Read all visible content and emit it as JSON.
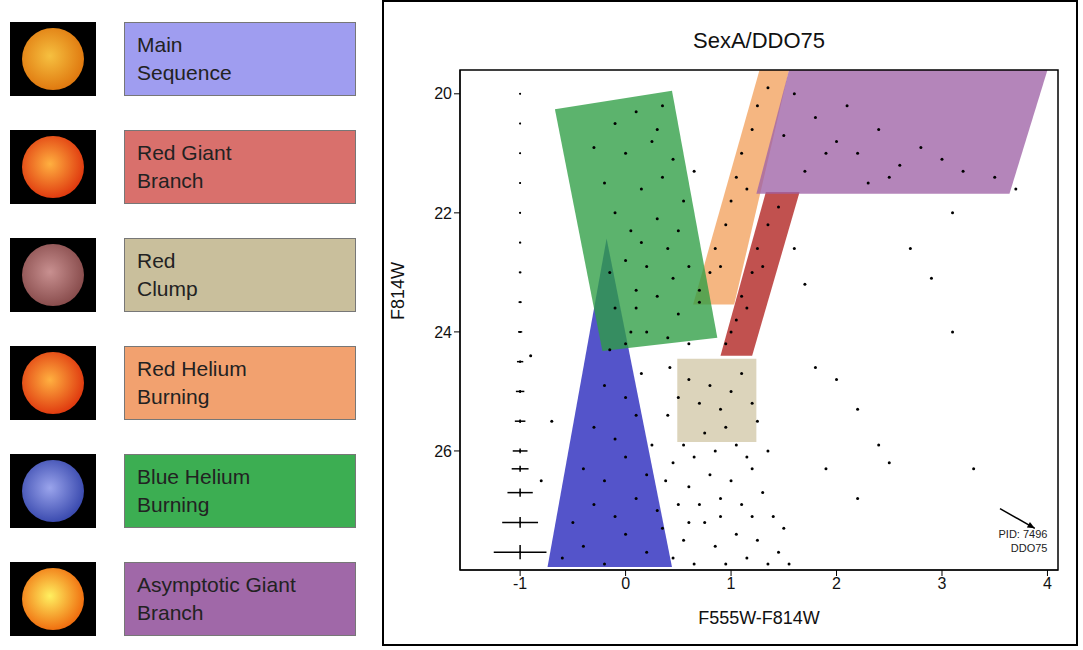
{
  "chart_data": {
    "type": "scatter",
    "title": "SexA/DDO75",
    "x_label": "F555W-F814W",
    "y_label": "F814W",
    "xlim": [
      -1.57,
      4.1
    ],
    "ylim": [
      28.0,
      19.6
    ],
    "xticks": [
      -1,
      0,
      1,
      2,
      3,
      4
    ],
    "yticks": [
      20,
      22,
      24,
      26
    ],
    "points": {
      "color": "#000000",
      "xy": [
        [
          0.45,
          27.8
        ],
        [
          0.55,
          27.5
        ],
        [
          0.65,
          27.9
        ],
        [
          0.75,
          27.2
        ],
        [
          0.85,
          27.6
        ],
        [
          0.95,
          27.9
        ],
        [
          1.05,
          27.4
        ],
        [
          1.15,
          27.8
        ],
        [
          1.25,
          27.5
        ],
        [
          1.35,
          27.9
        ],
        [
          1.45,
          27.7
        ],
        [
          0.5,
          26.9
        ],
        [
          0.6,
          26.6
        ],
        [
          0.7,
          26.9
        ],
        [
          0.8,
          26.4
        ],
        [
          0.9,
          26.8
        ],
        [
          1.0,
          26.5
        ],
        [
          1.1,
          26.9
        ],
        [
          1.2,
          26.3
        ],
        [
          1.3,
          26.7
        ],
        [
          1.4,
          27.1
        ],
        [
          0.45,
          26.2
        ],
        [
          0.55,
          25.9
        ],
        [
          0.65,
          26.1
        ],
        [
          0.75,
          25.7
        ],
        [
          0.85,
          26.0
        ],
        [
          0.95,
          25.6
        ],
        [
          1.05,
          25.9
        ],
        [
          1.15,
          26.1
        ],
        [
          1.25,
          25.5
        ],
        [
          1.35,
          26.0
        ],
        [
          0.4,
          25.4
        ],
        [
          0.5,
          25.1
        ],
        [
          0.6,
          24.8
        ],
        [
          0.7,
          25.2
        ],
        [
          0.8,
          24.9
        ],
        [
          0.9,
          25.3
        ],
        [
          1.0,
          25.0
        ],
        [
          1.1,
          24.7
        ],
        [
          1.2,
          25.2
        ],
        [
          0.42,
          24.6
        ],
        [
          0.35,
          27.3
        ],
        [
          0.38,
          26.5
        ],
        [
          1.5,
          27.3
        ],
        [
          1.55,
          27.9
        ],
        [
          0.9,
          27.1
        ],
        [
          0.6,
          27.2
        ],
        [
          1.2,
          27.1
        ],
        [
          -0.6,
          27.8
        ],
        [
          -0.4,
          27.6
        ],
        [
          -0.2,
          27.9
        ],
        [
          0.0,
          27.4
        ],
        [
          0.2,
          27.7
        ],
        [
          -0.5,
          27.2
        ],
        [
          -0.3,
          26.9
        ],
        [
          -0.1,
          27.1
        ],
        [
          0.1,
          26.8
        ],
        [
          0.3,
          27.0
        ],
        [
          -0.4,
          26.3
        ],
        [
          -0.2,
          26.5
        ],
        [
          0.0,
          26.1
        ],
        [
          0.2,
          26.4
        ],
        [
          -0.3,
          25.6
        ],
        [
          -0.1,
          25.8
        ],
        [
          0.1,
          25.4
        ],
        [
          0.25,
          25.9
        ],
        [
          -0.2,
          24.9
        ],
        [
          0.0,
          25.1
        ],
        [
          0.15,
          24.7
        ],
        [
          -0.15,
          24.3
        ],
        [
          0.05,
          24.0
        ],
        [
          -0.1,
          23.6
        ],
        [
          0.1,
          23.3
        ],
        [
          -0.15,
          23.0
        ],
        [
          0.0,
          22.8
        ],
        [
          0.0,
          24.2
        ],
        [
          0.2,
          24.0
        ],
        [
          0.4,
          24.1
        ],
        [
          0.6,
          24.2
        ],
        [
          0.1,
          23.6
        ],
        [
          0.3,
          23.4
        ],
        [
          0.5,
          23.7
        ],
        [
          0.7,
          23.5
        ],
        [
          0.2,
          22.9
        ],
        [
          0.4,
          22.6
        ],
        [
          0.6,
          22.9
        ],
        [
          0.05,
          22.3
        ],
        [
          0.3,
          22.1
        ],
        [
          0.5,
          22.3
        ],
        [
          0.15,
          21.6
        ],
        [
          0.35,
          21.4
        ],
        [
          0.55,
          21.8
        ],
        [
          0.0,
          21.0
        ],
        [
          0.25,
          20.8
        ],
        [
          0.45,
          21.1
        ],
        [
          -0.1,
          20.5
        ],
        [
          0.1,
          20.3
        ],
        [
          0.3,
          20.6
        ],
        [
          -0.3,
          20.9
        ],
        [
          -0.2,
          21.5
        ],
        [
          -0.1,
          22.0
        ],
        [
          0.65,
          21.3
        ],
        [
          0.35,
          20.2
        ],
        [
          0.15,
          22.5
        ],
        [
          0.45,
          23.1
        ],
        [
          0.7,
          23.3
        ],
        [
          0.8,
          23.0
        ],
        [
          0.85,
          22.6
        ],
        [
          0.95,
          22.2
        ],
        [
          1.0,
          21.8
        ],
        [
          1.05,
          21.4
        ],
        [
          1.1,
          21.0
        ],
        [
          1.2,
          20.6
        ],
        [
          1.25,
          20.2
        ],
        [
          1.35,
          19.9
        ],
        [
          0.9,
          22.9
        ],
        [
          1.15,
          21.6
        ],
        [
          0.95,
          24.2
        ],
        [
          1.05,
          23.8
        ],
        [
          1.1,
          23.4
        ],
        [
          1.2,
          23.0
        ],
        [
          1.25,
          22.6
        ],
        [
          1.35,
          22.2
        ],
        [
          1.45,
          21.9
        ],
        [
          1.0,
          24.0
        ],
        [
          1.15,
          23.6
        ],
        [
          1.3,
          22.9
        ],
        [
          1.6,
          20.0
        ],
        [
          1.8,
          20.4
        ],
        [
          2.0,
          20.8
        ],
        [
          2.2,
          21.0
        ],
        [
          2.4,
          20.6
        ],
        [
          2.6,
          21.2
        ],
        [
          2.8,
          20.9
        ],
        [
          3.0,
          21.1
        ],
        [
          3.2,
          21.3
        ],
        [
          1.7,
          21.3
        ],
        [
          1.9,
          21.0
        ],
        [
          2.1,
          20.2
        ],
        [
          2.5,
          21.4
        ],
        [
          3.5,
          21.4
        ],
        [
          1.5,
          20.7
        ],
        [
          2.3,
          21.5
        ],
        [
          1.6,
          22.6
        ],
        [
          1.7,
          23.2
        ],
        [
          2.0,
          24.8
        ],
        [
          2.2,
          25.3
        ],
        [
          2.4,
          25.9
        ],
        [
          2.5,
          26.2
        ],
        [
          1.8,
          24.6
        ],
        [
          3.1,
          24.0
        ],
        [
          3.3,
          26.3
        ],
        [
          2.9,
          23.1
        ],
        [
          2.7,
          22.6
        ],
        [
          3.7,
          21.6
        ],
        [
          1.9,
          26.3
        ],
        [
          2.2,
          26.8
        ],
        [
          3.1,
          22.0
        ],
        [
          -0.8,
          26.5
        ],
        [
          -0.9,
          24.4
        ],
        [
          -0.7,
          25.5
        ]
      ]
    },
    "error_bars": [
      {
        "x": -1,
        "y": 20.0,
        "xerr": 0.005,
        "yerr": 0.005
      },
      {
        "x": -1,
        "y": 20.5,
        "xerr": 0.005,
        "yerr": 0.005
      },
      {
        "x": -1,
        "y": 21.0,
        "xerr": 0.005,
        "yerr": 0.005
      },
      {
        "x": -1,
        "y": 21.5,
        "xerr": 0.005,
        "yerr": 0.005
      },
      {
        "x": -1,
        "y": 22.0,
        "xerr": 0.008,
        "yerr": 0.006
      },
      {
        "x": -1,
        "y": 22.5,
        "xerr": 0.01,
        "yerr": 0.008
      },
      {
        "x": -1,
        "y": 23.0,
        "xerr": 0.012,
        "yerr": 0.01
      },
      {
        "x": -1,
        "y": 23.5,
        "xerr": 0.015,
        "yerr": 0.012
      },
      {
        "x": -1,
        "y": 24.0,
        "xerr": 0.02,
        "yerr": 0.015
      },
      {
        "x": -1,
        "y": 24.5,
        "xerr": 0.03,
        "yerr": 0.02
      },
      {
        "x": -1,
        "y": 25.0,
        "xerr": 0.04,
        "yerr": 0.025
      },
      {
        "x": -1,
        "y": 25.5,
        "xerr": 0.05,
        "yerr": 0.03
      },
      {
        "x": -1,
        "y": 26.0,
        "xerr": 0.07,
        "yerr": 0.04
      },
      {
        "x": -1,
        "y": 26.3,
        "xerr": 0.08,
        "yerr": 0.05
      },
      {
        "x": -1,
        "y": 26.7,
        "xerr": 0.12,
        "yerr": 0.07
      },
      {
        "x": -1,
        "y": 27.2,
        "xerr": 0.17,
        "yerr": 0.09
      },
      {
        "x": -1,
        "y": 27.7,
        "xerr": 0.25,
        "yerr": 0.12
      }
    ],
    "regions": [
      {
        "label": [
          "Main",
          "Sequence"
        ],
        "legend_color": "#9f9df0",
        "color": "#2424bb",
        "polygon": [
          [
            -0.74,
            27.95
          ],
          [
            -0.18,
            22.43
          ],
          [
            0.44,
            27.95
          ]
        ]
      },
      {
        "label": [
          "Red Giant",
          "Branch"
        ],
        "legend_color": "#d9706c",
        "color": "#b0201e",
        "polygon": [
          [
            0.9,
            24.4
          ],
          [
            1.33,
            21.65
          ],
          [
            1.65,
            21.65
          ],
          [
            1.2,
            24.4
          ]
        ]
      },
      {
        "label": [
          "Red",
          "Clump"
        ],
        "legend_color": "#c9bf9c",
        "color": "#d2c8a8",
        "polygon": [
          [
            0.49,
            24.45
          ],
          [
            1.24,
            24.45
          ],
          [
            1.24,
            25.85
          ],
          [
            0.49,
            25.85
          ]
        ]
      },
      {
        "label": [
          "Red Helium",
          "Burning"
        ],
        "legend_color": "#f2a16f",
        "color": "#f2a25e",
        "polygon": [
          [
            0.64,
            23.54
          ],
          [
            1.27,
            19.6
          ],
          [
            1.55,
            19.6
          ],
          [
            1.03,
            23.54
          ]
        ]
      },
      {
        "label": [
          "Blue Helium",
          "Burning"
        ],
        "legend_color": "#3cae52",
        "color": "#2e9e44",
        "polygon": [
          [
            -0.67,
            20.26
          ],
          [
            0.44,
            19.95
          ],
          [
            0.87,
            24.1
          ],
          [
            -0.22,
            24.32
          ]
        ]
      },
      {
        "label": [
          "Asymptotic Giant",
          "Branch"
        ],
        "legend_color": "#a068a8",
        "color": "#9f63a6",
        "polygon": [
          [
            1.55,
            19.6
          ],
          [
            4.0,
            19.6
          ],
          [
            3.64,
            21.68
          ],
          [
            1.24,
            21.68
          ]
        ]
      }
    ],
    "annotations": [
      {
        "text": "PID: 7496",
        "x": 4.0,
        "y": 27.47
      },
      {
        "text": "DDO75",
        "x": 4.0,
        "y": 27.69
      }
    ],
    "arrow": {
      "from": [
        3.55,
        26.97
      ],
      "to": [
        3.88,
        27.3
      ]
    }
  }
}
